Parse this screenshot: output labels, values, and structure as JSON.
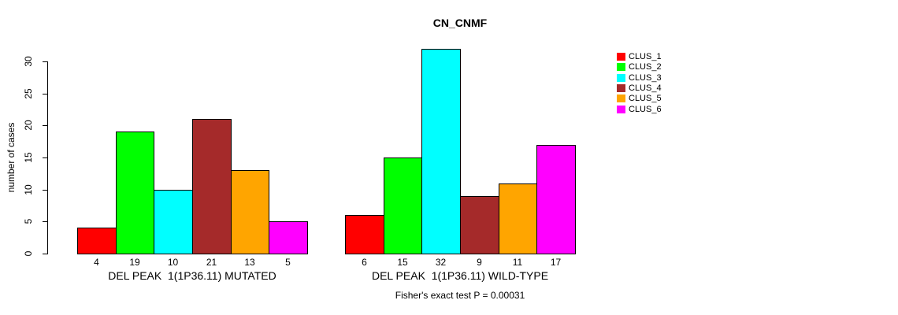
{
  "chart_data": {
    "type": "bar",
    "title": "CN_CNMF",
    "ylabel": "number of cases",
    "footer": "Fisher's exact test P = 0.00031",
    "ylim": [
      0,
      30
    ],
    "yticks": [
      0,
      5,
      10,
      15,
      20,
      25,
      30
    ],
    "grid": false,
    "legend_position": "right",
    "legend": [
      {
        "label": "CLUS_1",
        "color": "#FF0000"
      },
      {
        "label": "CLUS_2",
        "color": "#00FF00"
      },
      {
        "label": "CLUS_3",
        "color": "#00FFFF"
      },
      {
        "label": "CLUS_4",
        "color": "#A52A2A"
      },
      {
        "label": "CLUS_5",
        "color": "#FFA500"
      },
      {
        "label": "CLUS_6",
        "color": "#FF00FF"
      }
    ],
    "series_colors": [
      "#FF0000",
      "#00FF00",
      "#00FFFF",
      "#A52A2A",
      "#FFA500",
      "#FF00FF"
    ],
    "groups": [
      {
        "label": "DEL PEAK  1(1P36.11) MUTATED",
        "bar_value_labels": [
          "4",
          "19",
          "10",
          "21",
          "13",
          "5"
        ],
        "values": [
          4,
          19,
          10,
          21,
          13,
          5
        ]
      },
      {
        "label": "DEL PEAK  1(1P36.11) WILD-TYPE",
        "bar_value_labels": [
          "6",
          "15",
          "32",
          "9",
          "11",
          "17"
        ],
        "values": [
          6,
          15,
          32,
          9,
          11,
          17
        ]
      }
    ]
  }
}
